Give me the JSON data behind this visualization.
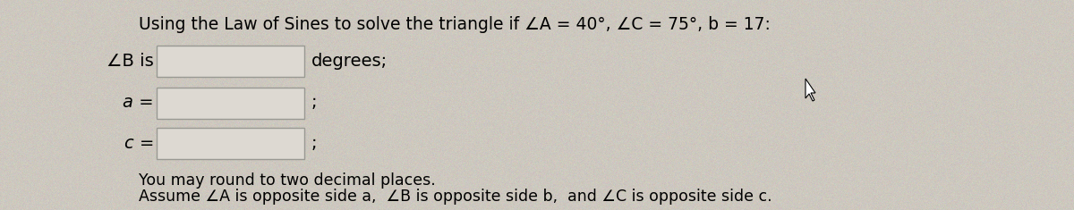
{
  "title_text": "Using the Law of Sines to solve the triangle if ∠A = 40°, ∠C = 75°, b = 17:",
  "line1_label": "∠B is",
  "line1_suffix": "degrees;",
  "line2_label": "a =",
  "line2_suffix": ";",
  "line3_label": "c =",
  "line3_suffix": ";",
  "note1": "You may round to two decimal places.",
  "note2": "Assume ∠A is opposite side a,  ∠B is opposite side b,  and ∠C is opposite side c.",
  "bg_color": "#cdc8bf",
  "box_facecolor": "#ddd9d2",
  "box_edgecolor": "#999993",
  "title_fontsize": 13.5,
  "label_fontsize": 14,
  "note_fontsize": 12.5
}
